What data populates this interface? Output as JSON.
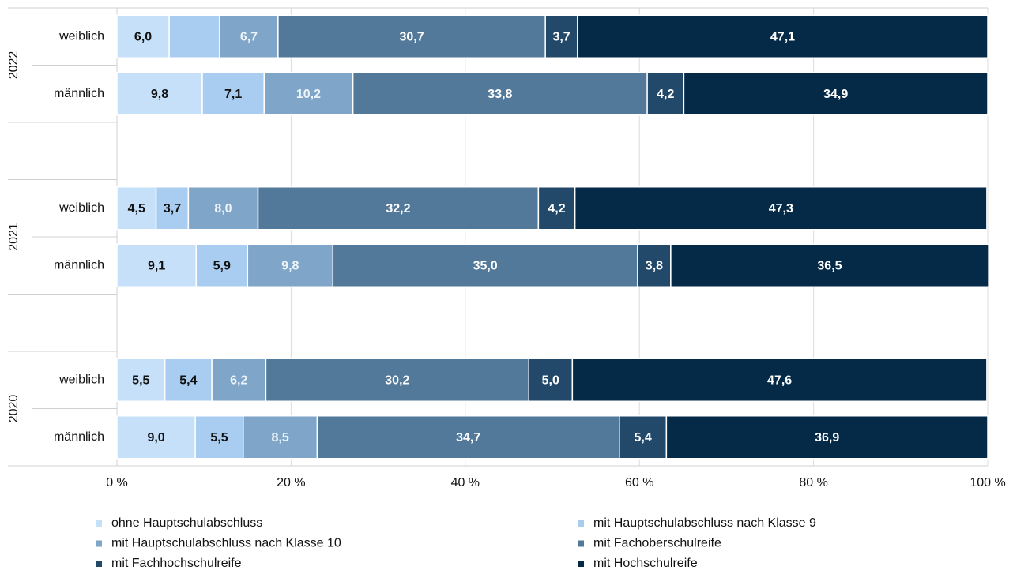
{
  "chart_data": {
    "type": "stacked_bar_horizontal",
    "categories": [
      "weiblich",
      "männlich",
      "weiblich",
      "männlich",
      "weiblich",
      "männlich"
    ],
    "group_labels": [
      "2022",
      "2021",
      "2020"
    ],
    "series": [
      {
        "name": "ohne Hauptschulabschluss",
        "color": "#c5e0f8",
        "label_color": "#111111",
        "values": [
          6.0,
          9.8,
          4.5,
          9.1,
          5.5,
          9.0
        ],
        "value_labels": [
          "6,0",
          "9,8",
          "4,5",
          "9,1",
          "5,5",
          "9,0"
        ]
      },
      {
        "name": "mit Hauptschulabschluss nach Klasse 9",
        "color": "#a9cdf0",
        "label_color": "#111111",
        "values": [
          5.8,
          7.1,
          3.7,
          5.9,
          5.4,
          5.5
        ],
        "value_labels": [
          null,
          "7,1",
          "3,7",
          "5,9",
          "5,4",
          "5,5"
        ]
      },
      {
        "name": "mit Hauptschulabschluss nach Klasse 10",
        "color": "#7fa6c8",
        "label_color": "#eef4fa",
        "values": [
          6.7,
          10.2,
          8.0,
          9.8,
          6.2,
          8.5
        ],
        "value_labels": [
          "6,7",
          "10,2",
          "8,0",
          "9,8",
          "6,2",
          "8,5"
        ]
      },
      {
        "name": "mit Fachoberschulreife",
        "color": "#52789a",
        "label_color": "#ffffff",
        "values": [
          30.7,
          33.8,
          32.2,
          35.0,
          30.2,
          34.7
        ],
        "value_labels": [
          "30,7",
          "33,8",
          "32,2",
          "35,0",
          "30,2",
          "34,7"
        ]
      },
      {
        "name": "mit Fachhochschulreife",
        "color": "#23496a",
        "label_color": "#ffffff",
        "values": [
          3.7,
          4.2,
          4.2,
          3.8,
          5.0,
          5.4
        ],
        "value_labels": [
          "3,7",
          "4,2",
          "4,2",
          "3,8",
          "5,0",
          "5,4"
        ]
      },
      {
        "name": "mit Hochschulreife",
        "color": "#052a48",
        "label_color": "#ffffff",
        "values": [
          47.1,
          34.9,
          47.3,
          36.5,
          47.6,
          36.9
        ],
        "value_labels": [
          "47,1",
          "34,9",
          "47,3",
          "36,5",
          "47,6",
          "36,9"
        ]
      }
    ],
    "xlim": [
      0,
      100
    ],
    "xticks": [
      {
        "value": 0,
        "label": "0 %"
      },
      {
        "value": 20,
        "label": "20 %"
      },
      {
        "value": 40,
        "label": "40 %"
      },
      {
        "value": 60,
        "label": "60 %"
      },
      {
        "value": 80,
        "label": "80 %"
      },
      {
        "value": 100,
        "label": "100 %"
      }
    ],
    "grid": true
  }
}
